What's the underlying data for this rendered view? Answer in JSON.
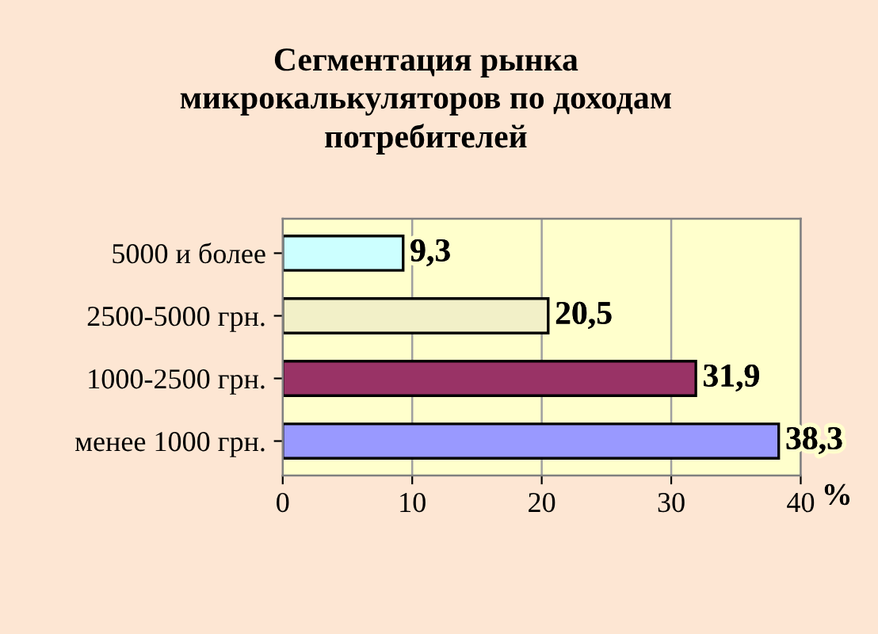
{
  "chart_data": {
    "type": "bar",
    "orientation": "horizontal",
    "title": "Сегментация рынка\nмикрокалькуляторов по доходам\nпотребителей",
    "xlabel": "%",
    "categories": [
      "5000 и более",
      "2500-5000 грн.",
      "1000-2500 грн.",
      "менее 1000 грн."
    ],
    "values": [
      9.3,
      20.5,
      31.9,
      38.3
    ],
    "value_labels": [
      "9,3",
      "20,5",
      "31,9",
      "38,3"
    ],
    "colors": [
      "#ccffff",
      "#f2f0c8",
      "#993366",
      "#9999ff"
    ],
    "xlim": [
      0,
      40
    ],
    "xticks": [
      0,
      10,
      20,
      30,
      40
    ],
    "grid": "x",
    "legend": false
  }
}
